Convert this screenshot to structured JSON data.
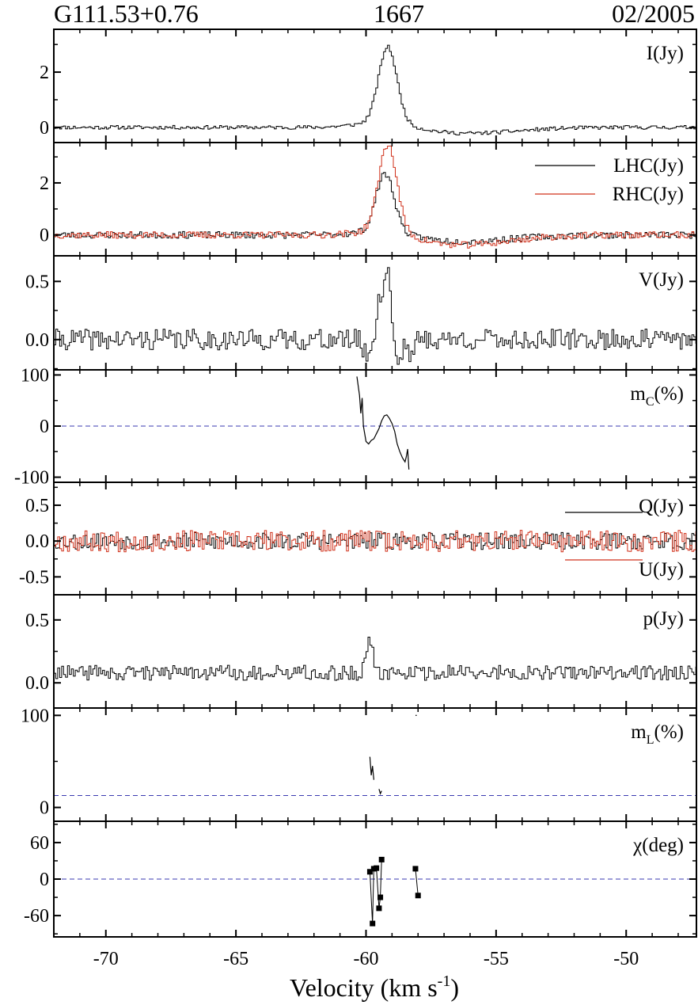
{
  "header": {
    "left": "G111.53+0.76",
    "center": "1667",
    "right": "02/2005"
  },
  "colors": {
    "black": "#000000",
    "red": "#d0301a",
    "dashed": "#3a3ab0"
  },
  "chart_data": {
    "type": "line",
    "xlabel": "Velocity (km s",
    "xlabel_sup": "-1",
    "xlabel_close": ")",
    "xlim": [
      -72.0,
      -47.3
    ],
    "xticks": [
      -70,
      -65,
      -60,
      -55,
      -50
    ],
    "xtick_labels": [
      "-70",
      "-65",
      "-60",
      "-55",
      "-50"
    ],
    "panels": [
      {
        "id": "I",
        "label": "I(Jy)",
        "ylim": [
          -0.55,
          3.55
        ],
        "yticks": [
          0,
          2
        ],
        "ytick_labels": [
          "0",
          "2"
        ],
        "profiles": [
          {
            "color": "black",
            "peak_v": -59.2,
            "peak": 2.75,
            "base": 0.0,
            "trough_v": -56.3,
            "trough": -0.22,
            "noise": 0.07,
            "seed": 11
          }
        ]
      },
      {
        "id": "LR",
        "label": "",
        "ylim": [
          -0.8,
          3.55
        ],
        "yticks": [
          0,
          2
        ],
        "ytick_labels": [
          "0",
          "2"
        ],
        "legend": [
          "LHC(Jy)",
          "RHC(Jy)"
        ],
        "profiles": [
          {
            "color": "black",
            "peak_v": -59.3,
            "peak": 2.25,
            "base": 0.0,
            "trough_v": -56.5,
            "trough": -0.25,
            "noise": 0.13,
            "seed": 23
          },
          {
            "color": "red",
            "peak_v": -59.2,
            "peak": 3.35,
            "base": 0.0,
            "trough_v": -56.6,
            "trough": -0.4,
            "noise": 0.13,
            "seed": 37
          }
        ]
      },
      {
        "id": "V",
        "label": "V(Jy)",
        "ylim": [
          -0.26,
          0.72
        ],
        "yticks": [
          0.0,
          0.5
        ],
        "ytick_labels": [
          "0.0",
          "0.5"
        ],
        "profiles": [
          {
            "color": "black",
            "noise_only": true,
            "noise": 0.09,
            "seed": 41,
            "features": [
              [
                -60.0,
                -0.15
              ],
              [
                -59.2,
                0.62
              ],
              [
                -59.5,
                0.35
              ],
              [
                -58.8,
                -0.2
              ],
              [
                -58.3,
                -0.12
              ]
            ]
          }
        ]
      },
      {
        "id": "mc",
        "label": "m",
        "label_sub": "C",
        "label_tail": "(%)",
        "ylim": [
          -110,
          110
        ],
        "yticks": [
          -100,
          0,
          100
        ],
        "ytick_labels": [
          "-100",
          "0",
          "100"
        ],
        "dashed_y": 0,
        "polyline": [
          [
            -60.35,
            97
          ],
          [
            -60.25,
            60
          ],
          [
            -60.2,
            25
          ],
          [
            -60.15,
            55
          ],
          [
            -60.1,
            0
          ],
          [
            -60.0,
            -30
          ],
          [
            -59.9,
            -35
          ],
          [
            -59.8,
            -28
          ],
          [
            -59.7,
            -25
          ],
          [
            -59.6,
            -15
          ],
          [
            -59.5,
            -5
          ],
          [
            -59.4,
            10
          ],
          [
            -59.3,
            20
          ],
          [
            -59.2,
            22
          ],
          [
            -59.1,
            15
          ],
          [
            -59.0,
            5
          ],
          [
            -58.9,
            -10
          ],
          [
            -58.8,
            -35
          ],
          [
            -58.7,
            -50
          ],
          [
            -58.6,
            -62
          ],
          [
            -58.5,
            -70
          ],
          [
            -58.45,
            -60
          ],
          [
            -58.4,
            -45
          ],
          [
            -58.35,
            -85
          ]
        ]
      },
      {
        "id": "QU",
        "label": "",
        "ylim": [
          -0.75,
          0.82
        ],
        "yticks": [
          -0.5,
          0.0,
          0.5
        ],
        "ytick_labels": [
          "-0.5",
          "0.0",
          "0.5"
        ],
        "legend": [
          "Q(Jy)",
          "U(Jy)"
        ],
        "profiles": [
          {
            "color": "black",
            "noise_only": true,
            "noise": 0.12,
            "seed": 53
          },
          {
            "color": "red",
            "noise_only": true,
            "noise": 0.15,
            "seed": 67
          }
        ]
      },
      {
        "id": "p",
        "label": "p(Jy)",
        "ylim": [
          -0.2,
          0.7
        ],
        "yticks": [
          0.0,
          0.5
        ],
        "ytick_labels": [
          "0.0",
          "0.5"
        ],
        "profiles": [
          {
            "color": "black",
            "noise_only": true,
            "positive": true,
            "noise": 0.12,
            "seed": 79,
            "features": [
              [
                -59.9,
                0.25
              ]
            ]
          }
        ]
      },
      {
        "id": "mL",
        "label": "m",
        "label_sub": "L",
        "label_tail": "(%)",
        "ylim": [
          -15,
          108
        ],
        "yticks": [
          0,
          100
        ],
        "ytick_labels": [
          "0",
          "100"
        ],
        "dashed_y": 13,
        "polyline_segments": [
          [
            [
              -59.85,
              55
            ],
            [
              -59.8,
              35
            ],
            [
              -59.75,
              45
            ],
            [
              -59.7,
              30
            ]
          ],
          [
            [
              -59.5,
              20
            ],
            [
              -59.45,
              15
            ],
            [
              -59.4,
              18
            ]
          ],
          [
            [
              -58.1,
              100
            ],
            [
              -58.05,
              100
            ]
          ]
        ]
      },
      {
        "id": "chi",
        "label": "χ(deg)",
        "ylim": [
          -95,
          95
        ],
        "yticks": [
          -60,
          0,
          60
        ],
        "ytick_labels": [
          "-60",
          "0",
          "60"
        ],
        "dashed_y": 0,
        "points": [
          [
            -59.85,
            12
          ],
          [
            -59.75,
            -73
          ],
          [
            -59.7,
            17
          ],
          [
            -59.6,
            18
          ],
          [
            -59.5,
            -48
          ],
          [
            -59.45,
            -30
          ],
          [
            -59.4,
            32
          ],
          [
            -58.1,
            17
          ],
          [
            -58.0,
            -27
          ]
        ],
        "point_links": [
          [
            0,
            1
          ],
          [
            2,
            1
          ],
          [
            3,
            4
          ],
          [
            4,
            5
          ],
          [
            5,
            6
          ],
          [
            7,
            8
          ]
        ]
      }
    ]
  }
}
